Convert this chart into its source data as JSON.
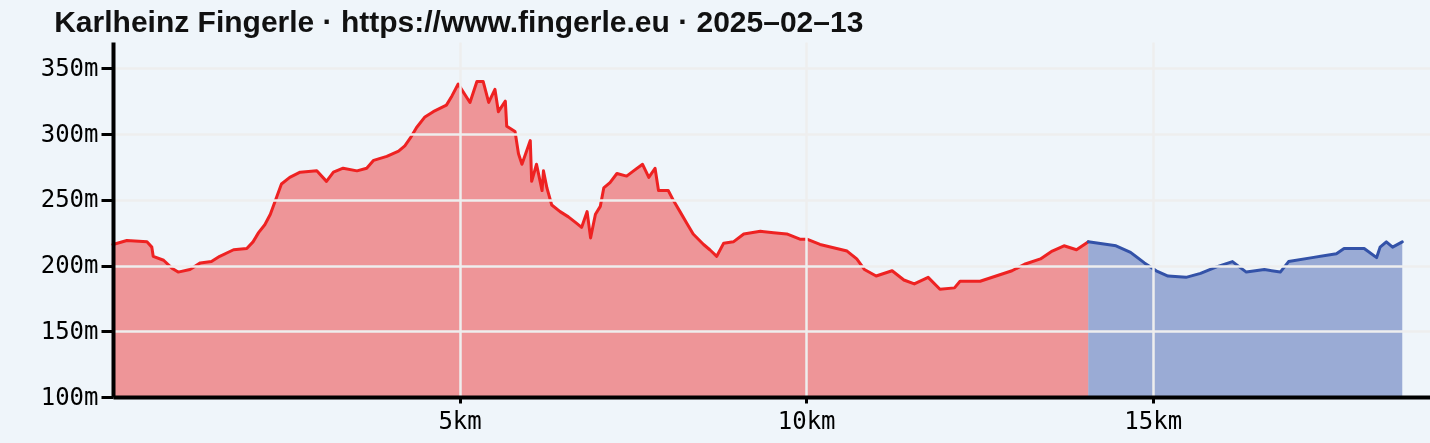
{
  "chart_data": {
    "type": "area",
    "title": "Karlheinz Fingerle · https://www.fingerle.eu · 2025–02–13",
    "series": [
      {
        "color": "#ee2222",
        "x": [
          0,
          0.2,
          0.49,
          0.56,
          0.58,
          0.73,
          0.85,
          0.94,
          1.11,
          1.26,
          1.42,
          1.54,
          1.74,
          1.93,
          2.02,
          2.1,
          2.19,
          2.27,
          2.36,
          2.43,
          2.55,
          2.7,
          2.94,
          3.08,
          3.18,
          3.32,
          3.52,
          3.66,
          3.76,
          3.95,
          4.12,
          4.21,
          4.29,
          4.38,
          4.5,
          4.62,
          4.81,
          4.89,
          4.98,
          5.15,
          5.25,
          5.34,
          5.42,
          5.51,
          5.56,
          5.66,
          5.68,
          5.8,
          5.85,
          5.9,
          6.02,
          6.04,
          6.11,
          6.19,
          6.21,
          6.26,
          6.33,
          6.45,
          6.57,
          6.69,
          6.76,
          6.84,
          6.89,
          6.96,
          7.03,
          7.08,
          7.17,
          7.27,
          7.41,
          7.51,
          7.64,
          7.73,
          7.82,
          7.87,
          8.01,
          8.09,
          8.18,
          8.28,
          8.37,
          8.52,
          8.61,
          8.71,
          8.81,
          8.95,
          9.1,
          9.34,
          9.53,
          9.72,
          9.91,
          10.01,
          10.2,
          10.44,
          10.59,
          10.73,
          10.84,
          11.01,
          11.24,
          11.41,
          11.56,
          11.76,
          11.93,
          12.14,
          12.22,
          12.51,
          12.74,
          12.97,
          13.15,
          13.38,
          13.55,
          13.72,
          13.9,
          14.04,
          14.07
        ],
        "values": [
          216,
          219,
          218,
          214,
          207,
          204,
          198,
          195,
          197,
          202,
          203,
          207,
          212,
          213,
          218,
          225,
          231,
          239,
          252,
          262,
          267,
          271,
          272,
          264,
          271,
          274,
          272,
          274,
          280,
          283,
          287,
          291,
          297,
          305,
          313,
          317,
          322,
          329,
          338,
          324,
          340,
          340,
          324,
          334,
          317,
          325,
          306,
          302,
          285,
          277,
          295,
          264,
          277,
          257,
          272,
          259,
          246,
          241,
          237,
          232,
          229,
          241,
          221,
          239,
          245,
          259,
          263,
          270,
          268,
          272,
          277,
          267,
          274,
          257,
          257,
          249,
          241,
          232,
          224,
          216,
          212,
          207,
          217,
          218,
          224,
          226,
          225,
          224,
          220,
          220,
          216,
          213,
          211,
          205,
          197,
          192,
          196,
          189,
          186,
          191,
          182,
          183,
          188,
          188,
          192,
          196,
          201,
          205,
          211,
          215,
          212,
          217,
          218
        ]
      },
      {
        "color": "#3352a8",
        "x": [
          14.07,
          14.47,
          14.68,
          14.88,
          15.05,
          15.22,
          15.48,
          15.69,
          15.92,
          16.15,
          16.35,
          16.61,
          16.84,
          16.96,
          17.3,
          17.65,
          17.76,
          18.05,
          18.23,
          18.28,
          18.37,
          18.46,
          18.6
        ],
        "values": [
          218,
          215,
          210,
          202,
          196,
          192,
          191,
          194,
          199,
          203,
          195,
          197,
          195,
          203,
          206,
          209,
          213,
          213,
          206,
          214,
          218,
          214,
          218
        ]
      }
    ],
    "xlim": [
      0,
      19
    ],
    "xticks": [
      {
        "value": 5,
        "label": "5km"
      },
      {
        "value": 10,
        "label": "10km"
      },
      {
        "value": 15,
        "label": "15km"
      }
    ],
    "ylim": [
      100,
      370
    ],
    "yticks": [
      {
        "value": 100,
        "label": "100m"
      },
      {
        "value": 150,
        "label": "150m"
      },
      {
        "value": 200,
        "label": "200m"
      },
      {
        "value": 250,
        "label": "250m"
      },
      {
        "value": 300,
        "label": "300m"
      },
      {
        "value": 350,
        "label": "350m"
      }
    ],
    "grid": true
  }
}
